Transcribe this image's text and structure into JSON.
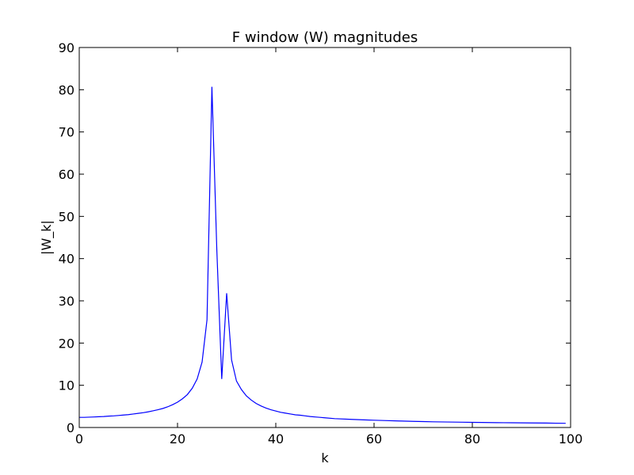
{
  "chart_data": {
    "type": "line",
    "title": "F window (W) magnitudes",
    "xlabel": "k",
    "ylabel": "|W_k|",
    "xlim": [
      0,
      100
    ],
    "ylim": [
      0,
      90
    ],
    "xticks": [
      0,
      20,
      40,
      60,
      80,
      100
    ],
    "yticks": [
      0,
      10,
      20,
      30,
      40,
      50,
      60,
      70,
      80,
      90
    ],
    "xtick_labels": [
      "0",
      "20",
      "40",
      "60",
      "80",
      "100"
    ],
    "ytick_labels": [
      "0",
      "10",
      "20",
      "30",
      "40",
      "50",
      "60",
      "70",
      "80",
      "90"
    ],
    "grid": false,
    "series": [
      {
        "color": "#0000ff",
        "x": [
          0,
          1,
          2,
          3,
          4,
          5,
          6,
          7,
          8,
          9,
          10,
          11,
          12,
          13,
          14,
          15,
          16,
          17,
          18,
          19,
          20,
          21,
          22,
          23,
          24,
          25,
          26,
          27,
          28,
          29,
          30,
          31,
          32,
          33,
          34,
          35,
          36,
          37,
          38,
          39,
          40,
          41,
          42,
          43,
          44,
          45,
          46,
          47,
          48,
          49,
          50,
          52,
          55,
          58,
          60,
          62,
          65,
          68,
          70,
          72,
          75,
          78,
          80,
          82,
          85,
          88,
          90,
          92,
          95,
          97,
          99
        ],
        "y": [
          2.4,
          2.4,
          2.45,
          2.5,
          2.55,
          2.6,
          2.7,
          2.75,
          2.85,
          2.95,
          3.05,
          3.2,
          3.35,
          3.5,
          3.7,
          3.95,
          4.2,
          4.5,
          4.9,
          5.4,
          6.0,
          6.8,
          7.8,
          9.3,
          11.5,
          15.5,
          25.5,
          80.7,
          42.0,
          11.5,
          31.8,
          16.0,
          11.0,
          9.0,
          7.5,
          6.5,
          5.7,
          5.1,
          4.6,
          4.2,
          3.9,
          3.6,
          3.4,
          3.2,
          3.0,
          2.9,
          2.75,
          2.6,
          2.5,
          2.4,
          2.3,
          2.1,
          1.95,
          1.8,
          1.72,
          1.65,
          1.55,
          1.45,
          1.4,
          1.35,
          1.3,
          1.25,
          1.22,
          1.2,
          1.15,
          1.12,
          1.1,
          1.08,
          1.05,
          1.02,
          1.0
        ]
      }
    ]
  }
}
